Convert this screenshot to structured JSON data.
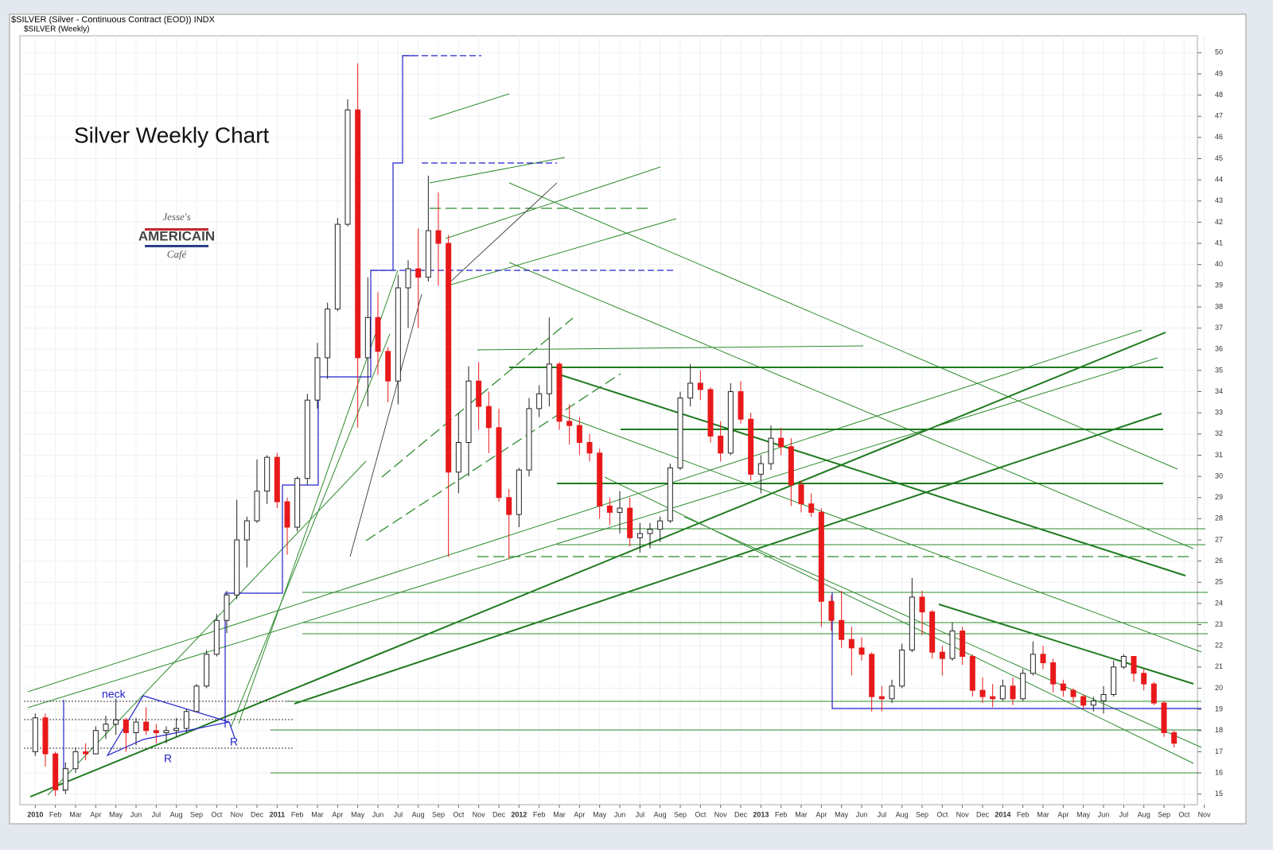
{
  "chart_data": {
    "type": "candlestick",
    "header": "$SILVER (Silver - Continuous Contract (EOD)) INDX",
    "subheader": "$SILVER (Weekly)",
    "title": "Silver Weekly Chart",
    "logo": {
      "top": "Jesse's",
      "middle": "AMERICAIN",
      "bottom": "Café"
    },
    "annotations": [
      "neck",
      "R",
      "R"
    ],
    "up_color": "#ffffff",
    "down_color": "#e8191a",
    "grid": true,
    "ylim": [
      14.5,
      50.8
    ],
    "yticks": [
      15,
      16,
      17,
      18,
      19,
      20,
      21,
      22,
      23,
      24,
      25,
      26,
      27,
      28,
      29,
      30,
      31,
      32,
      33,
      34,
      35,
      36,
      37,
      38,
      39,
      40,
      41,
      42,
      43,
      44,
      45,
      46,
      47,
      48,
      49,
      50
    ],
    "categories": [
      "2010",
      null,
      "Feb",
      null,
      "Mar",
      null,
      "Apr",
      null,
      "May",
      null,
      "Jun",
      null,
      "Jul",
      null,
      "Aug",
      null,
      "Sep",
      null,
      "Oct",
      null,
      "Nov",
      null,
      "Dec",
      null,
      "2011",
      null,
      "Feb",
      null,
      "Mar",
      null,
      "Apr",
      null,
      "May",
      null,
      "Jun",
      null,
      "Jul",
      null,
      "Aug",
      null,
      "Sep",
      null,
      "Oct",
      null,
      "Nov",
      null,
      "Dec",
      null,
      "2012",
      null,
      "Feb",
      null,
      "Mar",
      null,
      "Apr",
      null,
      "May",
      null,
      "Jun",
      null,
      "Jul",
      null,
      "Aug",
      null,
      "Sep",
      null,
      "Oct",
      null,
      "Nov",
      null,
      "Dec",
      null,
      "2013",
      null,
      "Feb",
      null,
      "Mar",
      null,
      "Apr",
      null,
      "May",
      null,
      "Jun",
      null,
      "Jul",
      null,
      "Aug",
      null,
      "Sep",
      null,
      "Oct",
      null,
      "Nov",
      null,
      "Dec",
      null,
      "2014",
      null,
      "Feb",
      null,
      "Mar",
      null,
      "Apr",
      null,
      "May",
      null,
      "Jun",
      null,
      "Jul",
      null,
      "Aug",
      null,
      "Sep",
      null,
      "Oct",
      null,
      "Nov"
    ],
    "values": [
      [
        17.0,
        18.8,
        16.8,
        18.6
      ],
      [
        18.6,
        18.8,
        16.3,
        16.9
      ],
      [
        16.9,
        17.0,
        14.9,
        15.2
      ],
      [
        15.2,
        16.5,
        15.0,
        16.2
      ],
      [
        16.2,
        17.2,
        16.0,
        17.0
      ],
      [
        17.0,
        17.4,
        16.6,
        16.9
      ],
      [
        16.9,
        18.2,
        16.9,
        18.0
      ],
      [
        18.0,
        18.7,
        17.6,
        18.3
      ],
      [
        18.3,
        19.5,
        17.8,
        18.5
      ],
      [
        18.5,
        18.6,
        17.0,
        17.9
      ],
      [
        17.9,
        18.6,
        17.3,
        18.4
      ],
      [
        18.4,
        19.1,
        17.8,
        18.0
      ],
      [
        18.0,
        18.3,
        17.4,
        17.9
      ],
      [
        17.9,
        18.2,
        17.4,
        18.0
      ],
      [
        18.0,
        18.6,
        17.7,
        18.1
      ],
      [
        18.1,
        19.0,
        17.9,
        18.9
      ],
      [
        18.9,
        20.2,
        18.9,
        20.1
      ],
      [
        20.1,
        21.8,
        20.0,
        21.6
      ],
      [
        21.6,
        23.5,
        21.5,
        23.2
      ],
      [
        23.2,
        24.6,
        22.6,
        24.4
      ],
      [
        24.4,
        28.9,
        24.2,
        27.0
      ],
      [
        27.0,
        28.1,
        25.7,
        27.9
      ],
      [
        27.9,
        30.8,
        27.8,
        29.3
      ],
      [
        29.3,
        31.0,
        28.7,
        30.9
      ],
      [
        30.9,
        31.1,
        28.5,
        28.8
      ],
      [
        28.8,
        29.0,
        26.3,
        27.6
      ],
      [
        27.6,
        30.0,
        27.4,
        29.9
      ],
      [
        29.9,
        33.9,
        29.6,
        33.6
      ],
      [
        33.6,
        36.3,
        33.2,
        35.6
      ],
      [
        35.6,
        38.2,
        34.6,
        37.9
      ],
      [
        37.9,
        42.2,
        37.8,
        41.9
      ],
      [
        41.9,
        47.8,
        41.8,
        47.3
      ],
      [
        47.3,
        49.5,
        32.3,
        35.6
      ],
      [
        35.6,
        39.4,
        33.3,
        37.5
      ],
      [
        37.5,
        38.7,
        34.8,
        35.9
      ],
      [
        35.9,
        36.1,
        33.5,
        34.5
      ],
      [
        34.5,
        39.5,
        33.4,
        38.9
      ],
      [
        38.9,
        40.2,
        37.0,
        39.8
      ],
      [
        39.8,
        41.7,
        37.0,
        39.4
      ],
      [
        39.4,
        44.2,
        39.2,
        41.6
      ],
      [
        41.6,
        43.4,
        39.0,
        41.0
      ],
      [
        41.0,
        41.4,
        26.2,
        30.2
      ],
      [
        30.2,
        33.0,
        29.2,
        31.6
      ],
      [
        31.6,
        35.2,
        30.0,
        34.5
      ],
      [
        34.5,
        35.4,
        32.2,
        33.3
      ],
      [
        33.3,
        34.0,
        31.1,
        32.3
      ],
      [
        32.3,
        33.2,
        28.8,
        29.0
      ],
      [
        29.0,
        29.4,
        26.1,
        28.2
      ],
      [
        28.2,
        30.4,
        27.6,
        30.3
      ],
      [
        30.3,
        33.7,
        30.0,
        33.2
      ],
      [
        33.2,
        34.3,
        32.8,
        33.9
      ],
      [
        33.9,
        37.5,
        33.3,
        35.3
      ],
      [
        35.3,
        35.4,
        32.2,
        32.6
      ],
      [
        32.6,
        33.4,
        31.5,
        32.4
      ],
      [
        32.4,
        32.8,
        31.0,
        31.6
      ],
      [
        31.6,
        32.0,
        30.7,
        31.1
      ],
      [
        31.1,
        31.3,
        28.0,
        28.6
      ],
      [
        28.6,
        29.0,
        27.7,
        28.3
      ],
      [
        28.3,
        29.3,
        27.3,
        28.5
      ],
      [
        28.5,
        29.0,
        26.7,
        27.1
      ],
      [
        27.1,
        27.8,
        26.4,
        27.3
      ],
      [
        27.3,
        27.8,
        26.6,
        27.5
      ],
      [
        27.5,
        28.1,
        26.9,
        27.9
      ],
      [
        27.9,
        30.6,
        27.8,
        30.4
      ],
      [
        30.4,
        34.0,
        30.3,
        33.7
      ],
      [
        33.7,
        35.3,
        33.3,
        34.4
      ],
      [
        34.4,
        35.0,
        33.6,
        34.1
      ],
      [
        34.1,
        34.2,
        31.6,
        31.9
      ],
      [
        31.9,
        32.6,
        30.7,
        31.1
      ],
      [
        31.1,
        34.4,
        31.0,
        34.0
      ],
      [
        34.0,
        34.5,
        32.5,
        32.7
      ],
      [
        32.7,
        33.0,
        29.8,
        30.1
      ],
      [
        30.1,
        31.0,
        29.2,
        30.6
      ],
      [
        30.6,
        32.4,
        30.3,
        31.8
      ],
      [
        31.8,
        32.3,
        31.0,
        31.4
      ],
      [
        31.4,
        31.8,
        28.6,
        29.6
      ],
      [
        29.6,
        29.8,
        28.3,
        28.7
      ],
      [
        28.7,
        29.2,
        28.1,
        28.3
      ],
      [
        28.3,
        28.5,
        22.9,
        24.1
      ],
      [
        24.1,
        24.4,
        22.7,
        23.2
      ],
      [
        23.2,
        24.6,
        21.9,
        22.3
      ],
      [
        22.3,
        22.9,
        20.6,
        21.9
      ],
      [
        21.9,
        22.4,
        21.3,
        21.6
      ],
      [
        21.6,
        21.7,
        18.9,
        19.6
      ],
      [
        19.6,
        20.1,
        18.9,
        19.5
      ],
      [
        19.5,
        20.4,
        19.3,
        20.1
      ],
      [
        20.1,
        22.1,
        20.0,
        21.8
      ],
      [
        21.8,
        25.2,
        21.7,
        24.3
      ],
      [
        24.3,
        24.6,
        22.5,
        23.6
      ],
      [
        23.6,
        23.7,
        21.4,
        21.7
      ],
      [
        21.7,
        22.0,
        20.6,
        21.4
      ],
      [
        21.4,
        23.1,
        21.3,
        22.7
      ],
      [
        22.7,
        22.9,
        21.1,
        21.5
      ],
      [
        21.5,
        21.6,
        19.6,
        19.9
      ],
      [
        19.9,
        20.5,
        19.3,
        19.6
      ],
      [
        19.6,
        20.2,
        19.1,
        19.5
      ],
      [
        19.5,
        20.4,
        19.4,
        20.1
      ],
      [
        20.1,
        20.5,
        19.2,
        19.5
      ],
      [
        19.5,
        20.9,
        19.4,
        20.7
      ],
      [
        20.7,
        22.2,
        20.6,
        21.6
      ],
      [
        21.6,
        22.0,
        20.9,
        21.2
      ],
      [
        21.2,
        21.4,
        19.8,
        20.2
      ],
      [
        20.2,
        20.4,
        19.6,
        19.9
      ],
      [
        19.9,
        20.0,
        19.3,
        19.6
      ],
      [
        19.6,
        19.7,
        19.0,
        19.2
      ],
      [
        19.2,
        19.6,
        18.9,
        19.4
      ],
      [
        19.4,
        20.1,
        18.8,
        19.7
      ],
      [
        19.7,
        21.3,
        19.6,
        21.0
      ],
      [
        21.0,
        21.6,
        20.9,
        21.5
      ],
      [
        21.5,
        21.5,
        20.3,
        20.7
      ],
      [
        20.7,
        20.9,
        19.9,
        20.2
      ],
      [
        20.2,
        20.3,
        19.2,
        19.3
      ],
      [
        19.3,
        19.4,
        17.7,
        17.9
      ],
      [
        17.9,
        18.0,
        17.2,
        17.4
      ],
      null,
      null,
      null
    ]
  }
}
